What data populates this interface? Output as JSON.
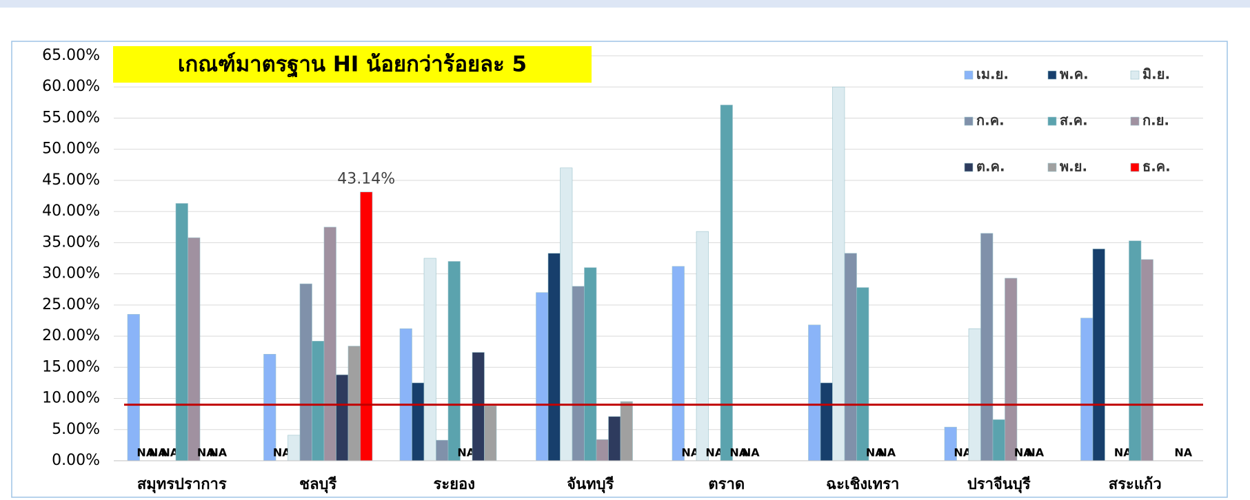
{
  "chart_data": {
    "type": "bar",
    "title": "เกณฑ์มาตรฐาน HI น้อยกว่าร้อยละ 5",
    "categories": [
      "สมุทรปราการ",
      "ชลบุรี",
      "ระยอง",
      "จันทบุรี",
      "ตราด",
      "ฉะเชิงเทรา",
      "ปราจีนบุรี",
      "สระแก้ว"
    ],
    "series": [
      {
        "name": "เม.ย.",
        "color": "#8ab4f8",
        "values": [
          23.5,
          17.1,
          21.2,
          27.0,
          31.2,
          21.8,
          5.4,
          22.9
        ],
        "value_labels": [
          null,
          null,
          null,
          null,
          null,
          null,
          null,
          null
        ]
      },
      {
        "name": "พ.ค.",
        "color": "#173f6c",
        "values": [
          null,
          null,
          12.5,
          33.3,
          null,
          12.5,
          null,
          34.0
        ],
        "value_labels": [
          "NA",
          "NA",
          null,
          null,
          "NA",
          null,
          "NA",
          null
        ]
      },
      {
        "name": "มิ.ย.",
        "color": "#dcebf0",
        "values": [
          null,
          4.1,
          32.5,
          47.0,
          36.8,
          60.0,
          21.2,
          null
        ],
        "value_labels": [
          "NA",
          null,
          null,
          null,
          null,
          null,
          null,
          null
        ]
      },
      {
        "name": "ก.ค.",
        "color": "#8091aa",
        "values": [
          null,
          28.4,
          3.3,
          28.0,
          null,
          33.3,
          36.5,
          null
        ],
        "value_labels": [
          "NA",
          null,
          null,
          null,
          "NA",
          null,
          null,
          "NA"
        ]
      },
      {
        "name": "ส.ค.",
        "color": "#5ba3ae",
        "values": [
          41.3,
          19.2,
          32.0,
          31.0,
          57.1,
          27.8,
          6.6,
          35.3
        ],
        "value_labels": [
          null,
          null,
          null,
          null,
          null,
          null,
          null,
          null
        ]
      },
      {
        "name": "ก.ย.",
        "color": "#a091a0",
        "values": [
          35.8,
          37.5,
          null,
          3.4,
          null,
          null,
          29.3,
          32.3
        ],
        "value_labels": [
          null,
          null,
          "NA",
          null,
          "NA",
          "NA",
          null,
          null
        ]
      },
      {
        "name": "ต.ค.",
        "color": "#2e3b5e",
        "values": [
          null,
          13.8,
          17.4,
          7.1,
          null,
          null,
          null,
          null
        ],
        "value_labels": [
          "NA",
          null,
          null,
          null,
          "NA",
          "NA",
          "NA",
          null
        ]
      },
      {
        "name": "พ.ย.",
        "color": "#a0a0a0",
        "values": [
          null,
          18.4,
          8.8,
          9.5,
          null,
          null,
          null,
          null
        ],
        "value_labels": [
          "NA",
          null,
          null,
          null,
          null,
          null,
          "NA",
          null
        ]
      },
      {
        "name": "ธ.ค.",
        "color": "#ff0000",
        "values": [
          null,
          43.14,
          null,
          null,
          null,
          null,
          null,
          null
        ],
        "value_labels": [
          null,
          "43.14%",
          null,
          null,
          null,
          null,
          null,
          "NA"
        ]
      }
    ],
    "reference_line": {
      "value": 9,
      "color": "#c00000"
    },
    "ylim": [
      0,
      65
    ],
    "yticks": [
      {
        "value": 0,
        "label": "0.00%"
      },
      {
        "value": 5,
        "label": "5.00%"
      },
      {
        "value": 10,
        "label": "10.00%"
      },
      {
        "value": 15,
        "label": "15.00%"
      },
      {
        "value": 20,
        "label": "20.00%"
      },
      {
        "value": 25,
        "label": "25.00%"
      },
      {
        "value": 30,
        "label": "30.00%"
      },
      {
        "value": 35,
        "label": "35.00%"
      },
      {
        "value": 40,
        "label": "40.00%"
      },
      {
        "value": 45,
        "label": "45.00%"
      },
      {
        "value": 50,
        "label": "50.00%"
      },
      {
        "value": 55,
        "label": "55.00%"
      },
      {
        "value": 60,
        "label": "60.00%"
      },
      {
        "value": 65,
        "label": "65.00%"
      }
    ],
    "grid": true
  }
}
